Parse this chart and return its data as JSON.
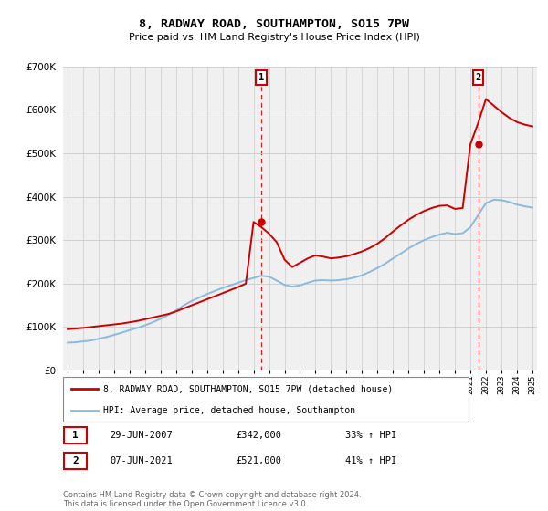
{
  "title": "8, RADWAY ROAD, SOUTHAMPTON, SO15 7PW",
  "subtitle": "Price paid vs. HM Land Registry's House Price Index (HPI)",
  "legend_line1": "8, RADWAY ROAD, SOUTHAMPTON, SO15 7PW (detached house)",
  "legend_line2": "HPI: Average price, detached house, Southampton",
  "footnote": "Contains HM Land Registry data © Crown copyright and database right 2024.\nThis data is licensed under the Open Government Licence v3.0.",
  "transaction1_date": "29-JUN-2007",
  "transaction1_price": "£342,000",
  "transaction1_hpi": "33% ↑ HPI",
  "transaction2_date": "07-JUN-2021",
  "transaction2_price": "£521,000",
  "transaction2_hpi": "41% ↑ HPI",
  "transaction1_year": 2007.5,
  "transaction2_year": 2021.5,
  "transaction1_value": 342000,
  "transaction2_value": 521000,
  "property_color": "#cc0000",
  "hpi_color": "#88bbdd",
  "vline_color": "#cc0000",
  "background_color": "#f0f0f0",
  "ylim": [
    0,
    700000
  ],
  "xlim_start": 1994.7,
  "xlim_end": 2025.3,
  "hpi_years": [
    1995,
    1995.5,
    1996,
    1996.5,
    1997,
    1997.5,
    1998,
    1998.5,
    1999,
    1999.5,
    2000,
    2000.5,
    2001,
    2001.5,
    2002,
    2002.5,
    2003,
    2003.5,
    2004,
    2004.5,
    2005,
    2005.5,
    2006,
    2006.5,
    2007,
    2007.5,
    2008,
    2008.5,
    2009,
    2009.5,
    2010,
    2010.5,
    2011,
    2011.5,
    2012,
    2012.5,
    2013,
    2013.5,
    2014,
    2014.5,
    2015,
    2015.5,
    2016,
    2016.5,
    2017,
    2017.5,
    2018,
    2018.5,
    2019,
    2019.5,
    2020,
    2020.5,
    2021,
    2021.5,
    2022,
    2022.5,
    2023,
    2023.5,
    2024,
    2024.5,
    2025
  ],
  "hpi_values": [
    64000,
    65000,
    67000,
    69000,
    73000,
    77000,
    82000,
    87000,
    93000,
    98000,
    104000,
    111000,
    119000,
    128000,
    138000,
    150000,
    160000,
    168000,
    176000,
    183000,
    190000,
    196000,
    202000,
    208000,
    213000,
    218000,
    216000,
    207000,
    197000,
    193000,
    196000,
    202000,
    207000,
    208000,
    207000,
    208000,
    210000,
    214000,
    219000,
    227000,
    236000,
    246000,
    258000,
    269000,
    281000,
    291000,
    300000,
    307000,
    313000,
    317000,
    314000,
    316000,
    330000,
    358000,
    385000,
    393000,
    392000,
    388000,
    382000,
    378000,
    375000
  ],
  "prop_years": [
    1995,
    1995.5,
    1996,
    1996.5,
    1997,
    1997.5,
    1998,
    1998.5,
    1999,
    1999.5,
    2000,
    2000.5,
    2001,
    2001.5,
    2002,
    2002.5,
    2003,
    2003.5,
    2004,
    2004.5,
    2005,
    2005.5,
    2006,
    2006.5,
    2007,
    2007.5,
    2008,
    2008.5,
    2009,
    2009.5,
    2010,
    2010.5,
    2011,
    2011.5,
    2012,
    2012.5,
    2013,
    2013.5,
    2014,
    2014.5,
    2015,
    2015.5,
    2016,
    2016.5,
    2017,
    2017.5,
    2018,
    2018.5,
    2019,
    2019.5,
    2020,
    2020.5,
    2021,
    2021.5,
    2022,
    2022.5,
    2023,
    2023.5,
    2024,
    2024.5,
    2025
  ],
  "prop_values": [
    95000,
    96500,
    98000,
    100000,
    102000,
    104000,
    106000,
    108000,
    111000,
    114000,
    118000,
    122000,
    126000,
    130000,
    136000,
    143000,
    150000,
    157000,
    164000,
    171000,
    178000,
    185000,
    192000,
    200000,
    342000,
    330000,
    315000,
    295000,
    255000,
    238000,
    248000,
    258000,
    265000,
    262000,
    258000,
    260000,
    263000,
    268000,
    274000,
    282000,
    292000,
    305000,
    320000,
    334000,
    347000,
    358000,
    367000,
    374000,
    379000,
    380000,
    372000,
    374000,
    521000,
    570000,
    625000,
    610000,
    595000,
    582000,
    572000,
    566000,
    562000
  ]
}
